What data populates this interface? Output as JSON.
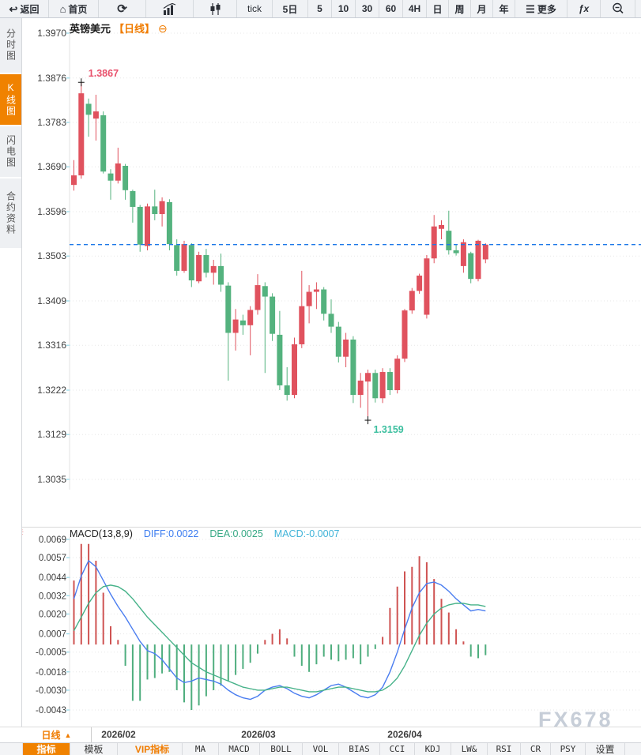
{
  "toolbar": {
    "items": [
      {
        "name": "back",
        "glyph": "↩",
        "label": "返回"
      },
      {
        "name": "home",
        "glyph": "⌂",
        "label": "首页"
      },
      {
        "name": "refresh",
        "glyph": "⟳",
        "label": ""
      },
      {
        "name": "bar-chart",
        "glyph": "",
        "label": ""
      },
      {
        "name": "candlestick",
        "glyph": "",
        "label": ""
      },
      {
        "name": "tick",
        "glyph": "",
        "label": "tick"
      },
      {
        "name": "5-day",
        "glyph": "",
        "label": "5日"
      },
      {
        "name": "5-min",
        "glyph": "",
        "label": "5"
      },
      {
        "name": "10-min",
        "glyph": "",
        "label": "10"
      },
      {
        "name": "30-min",
        "glyph": "",
        "label": "30"
      },
      {
        "name": "60-min",
        "glyph": "",
        "label": "60"
      },
      {
        "name": "4-hour",
        "glyph": "",
        "label": "4H"
      },
      {
        "name": "daily",
        "glyph": "",
        "label": "日"
      },
      {
        "name": "weekly",
        "glyph": "",
        "label": "周"
      },
      {
        "name": "monthly",
        "glyph": "",
        "label": "月"
      },
      {
        "name": "yearly",
        "glyph": "",
        "label": "年"
      },
      {
        "name": "more",
        "glyph": "☰",
        "label": "更多"
      },
      {
        "name": "fx",
        "glyph": "",
        "label": "ƒx"
      },
      {
        "name": "zoom-out",
        "glyph": "",
        "label": ""
      },
      {
        "name": "zoom-in-partial",
        "glyph": "",
        "label": ""
      }
    ]
  },
  "sidebar": {
    "tabs": [
      {
        "label": "分时图",
        "active": false
      },
      {
        "label": "K线图",
        "active": true
      },
      {
        "label": "闪电图",
        "active": false
      },
      {
        "label": "合约资料",
        "active": false
      }
    ]
  },
  "chart_header": {
    "symbol": "英镑美元",
    "period_tag": "【日线】",
    "collapse_glyph": "⊖"
  },
  "price_axis": {
    "ticks": [
      1.397,
      1.3876,
      1.3783,
      1.369,
      1.3596,
      1.3503,
      1.3409,
      1.3316,
      1.3222,
      1.3129,
      1.3035
    ]
  },
  "macd_header": {
    "name": "MACD(13,8,9)",
    "diff": "DIFF:0.0022",
    "dea": "DEA:0.0025",
    "macd": "MACD:-0.0007"
  },
  "macd_axis": {
    "ticks": [
      0.0069,
      0.0057,
      0.0044,
      0.0032,
      0.002,
      0.0007,
      -0.0005,
      -0.0018,
      -0.003,
      -0.0043
    ]
  },
  "xaxis": {
    "period_selector": "日线",
    "arrow": "▲",
    "dates": [
      "2026/02",
      "2026/03",
      "2026/04"
    ]
  },
  "bottom_toolbar": {
    "items": [
      "指标",
      "模板",
      "VIP指标",
      "MA",
      "MACD",
      "BOLL",
      "VOL",
      "BIAS",
      "CCI",
      "KDJ",
      "LW&",
      "RSI",
      "CR",
      "PSY",
      "设置"
    ]
  },
  "watermark": "FX678",
  "macd_gear_glyph": "☼",
  "colors": {
    "up": "#e0525e",
    "down": "#54b27e",
    "hist_up": "#cf5352",
    "hist_down": "#4fae7e",
    "diff_line": "#4a7df0",
    "dea_line": "#46b289",
    "dashed": "#1d78e8",
    "high_label": "#e8506b",
    "low_label": "#3cbf9f",
    "grid": "#e7e7e7",
    "axis_text": "#3c3c3c",
    "tick_mark": "#8fd8ea",
    "edge": "#e3e3e3",
    "marker": "#111111",
    "accent_orange": "#f08200"
  },
  "chart_data": {
    "type": "candlestick",
    "symbol": "英镑美元",
    "period": "日线",
    "high_label": "1.3867",
    "low_label": "1.3159",
    "last_price": 1.3527,
    "price_range": [
      1.3035,
      1.397
    ],
    "x_dates": [
      "2026/02",
      "2026/03",
      "2026/04"
    ],
    "candles": [
      [
        1.3652,
        1.3704,
        1.364,
        1.3672
      ],
      [
        1.3672,
        1.3867,
        1.3665,
        1.3844
      ],
      [
        1.3822,
        1.3833,
        1.3753,
        1.3799
      ],
      [
        1.3791,
        1.3841,
        1.3745,
        1.3806
      ],
      [
        1.3798,
        1.3806,
        1.3676,
        1.368
      ],
      [
        1.3676,
        1.3685,
        1.3621,
        1.3661
      ],
      [
        1.3661,
        1.373,
        1.3655,
        1.3697
      ],
      [
        1.3692,
        1.3696,
        1.3621,
        1.3641
      ],
      [
        1.3639,
        1.3642,
        1.3573,
        1.3606
      ],
      [
        1.3606,
        1.361,
        1.3512,
        1.3527
      ],
      [
        1.3524,
        1.3613,
        1.3515,
        1.3607
      ],
      [
        1.3607,
        1.3642,
        1.3578,
        1.3591
      ],
      [
        1.3591,
        1.3626,
        1.3565,
        1.3618
      ],
      [
        1.3616,
        1.3622,
        1.3515,
        1.3528
      ],
      [
        1.3526,
        1.3538,
        1.3462,
        1.3472
      ],
      [
        1.3472,
        1.3535,
        1.3468,
        1.3528
      ],
      [
        1.3526,
        1.353,
        1.3438,
        1.3452
      ],
      [
        1.345,
        1.3512,
        1.3446,
        1.3505
      ],
      [
        1.3505,
        1.3518,
        1.3458,
        1.3468
      ],
      [
        1.3468,
        1.3495,
        1.3443,
        1.3482
      ],
      [
        1.3482,
        1.3508,
        1.3428,
        1.3443
      ],
      [
        1.3441,
        1.3448,
        1.3242,
        1.3342
      ],
      [
        1.3342,
        1.3392,
        1.3305,
        1.337
      ],
      [
        1.3368,
        1.338,
        1.3338,
        1.3358
      ],
      [
        1.3358,
        1.3398,
        1.3295,
        1.339
      ],
      [
        1.339,
        1.3465,
        1.338,
        1.3442
      ],
      [
        1.344,
        1.3448,
        1.3258,
        1.3418
      ],
      [
        1.3418,
        1.3425,
        1.3325,
        1.334
      ],
      [
        1.3338,
        1.3388,
        1.3222,
        1.3232
      ],
      [
        1.3232,
        1.327,
        1.32,
        1.3212
      ],
      [
        1.3212,
        1.3332,
        1.3205,
        1.3318
      ],
      [
        1.3318,
        1.3472,
        1.331,
        1.3398
      ],
      [
        1.3398,
        1.3442,
        1.3362,
        1.3428
      ],
      [
        1.3428,
        1.3448,
        1.3392,
        1.3433
      ],
      [
        1.3433,
        1.3438,
        1.3368,
        1.3382
      ],
      [
        1.3382,
        1.3412,
        1.3342,
        1.3355
      ],
      [
        1.3355,
        1.3365,
        1.328,
        1.3292
      ],
      [
        1.3292,
        1.3342,
        1.327,
        1.3328
      ],
      [
        1.3328,
        1.3335,
        1.3195,
        1.3212
      ],
      [
        1.3212,
        1.3258,
        1.3185,
        1.3242
      ],
      [
        1.324,
        1.3265,
        1.3159,
        1.3258
      ],
      [
        1.3258,
        1.3265,
        1.3196,
        1.3205
      ],
      [
        1.3205,
        1.3268,
        1.3195,
        1.326
      ],
      [
        1.326,
        1.3268,
        1.3212,
        1.3222
      ],
      [
        1.3222,
        1.3295,
        1.3215,
        1.3288
      ],
      [
        1.3288,
        1.3392,
        1.3281,
        1.3389
      ],
      [
        1.3389,
        1.3436,
        1.3382,
        1.343
      ],
      [
        1.343,
        1.3466,
        1.3424,
        1.3462
      ],
      [
        1.338,
        1.3505,
        1.3372,
        1.3498
      ],
      [
        1.3498,
        1.3589,
        1.3488,
        1.3565
      ],
      [
        1.356,
        1.3578,
        1.3538,
        1.3568
      ],
      [
        1.3556,
        1.3598,
        1.3506,
        1.3515
      ],
      [
        1.3515,
        1.3528,
        1.3504,
        1.3509
      ],
      [
        1.3482,
        1.3538,
        1.3468,
        1.3532
      ],
      [
        1.3509,
        1.3512,
        1.3446,
        1.3455
      ],
      [
        1.3455,
        1.3537,
        1.345,
        1.3535
      ],
      [
        1.3496,
        1.353,
        1.3488,
        1.3527
      ]
    ],
    "macd": {
      "params": [
        13,
        8,
        9
      ],
      "diff_last": 0.0022,
      "dea_last": 0.0025,
      "macd_last": -0.0007,
      "hist": [
        0.0042,
        0.0066,
        0.0066,
        0.0055,
        0.0034,
        0.0012,
        0.0003,
        -0.0014,
        -0.0037,
        -0.0037,
        -0.0023,
        -0.0022,
        -0.0019,
        -0.0018,
        -0.003,
        -0.0038,
        -0.0043,
        -0.004,
        -0.0034,
        -0.003,
        -0.0027,
        -0.0024,
        -0.002,
        -0.0016,
        -0.0012,
        -0.0006,
        0.0003,
        0.0007,
        0.001,
        0.0004,
        -0.0008,
        -0.0014,
        -0.0018,
        -0.0013,
        -0.0008,
        -0.001,
        -0.0011,
        -0.001,
        -0.0009,
        -0.0013,
        -0.0008,
        -0.0003,
        0.0005,
        0.0024,
        0.0038,
        0.0048,
        0.0051,
        0.0058,
        0.0054,
        0.0043,
        0.003,
        0.0021,
        0.001,
        0.0002,
        -0.0008,
        -0.0009,
        -0.0007
      ],
      "diff": [
        0.003,
        0.0045,
        0.0055,
        0.0051,
        0.0042,
        0.0033,
        0.0025,
        0.0018,
        0.001,
        0.0002,
        -0.0004,
        -0.0006,
        -0.001,
        -0.0016,
        -0.0022,
        -0.0025,
        -0.0024,
        -0.0022,
        -0.0023,
        -0.0024,
        -0.0026,
        -0.003,
        -0.0033,
        -0.0035,
        -0.0036,
        -0.0034,
        -0.003,
        -0.0028,
        -0.0027,
        -0.0029,
        -0.0032,
        -0.0034,
        -0.0035,
        -0.0033,
        -0.003,
        -0.0027,
        -0.0026,
        -0.0028,
        -0.0031,
        -0.0034,
        -0.0035,
        -0.0033,
        -0.0028,
        -0.0018,
        -0.0005,
        0.001,
        0.0024,
        0.0034,
        0.004,
        0.0041,
        0.0039,
        0.0035,
        0.003,
        0.0026,
        0.0022,
        0.0023,
        0.0022
      ],
      "dea": [
        0.0009,
        0.0018,
        0.0027,
        0.0034,
        0.0038,
        0.0039,
        0.0038,
        0.0035,
        0.003,
        0.0024,
        0.0018,
        0.0013,
        0.0008,
        0.0003,
        -0.0002,
        -0.0007,
        -0.0012,
        -0.0015,
        -0.0018,
        -0.002,
        -0.0022,
        -0.0024,
        -0.0026,
        -0.0028,
        -0.0029,
        -0.003,
        -0.003,
        -0.0029,
        -0.0028,
        -0.0028,
        -0.0029,
        -0.003,
        -0.0031,
        -0.0031,
        -0.003,
        -0.0029,
        -0.0028,
        -0.0028,
        -0.0029,
        -0.003,
        -0.0031,
        -0.0031,
        -0.003,
        -0.0027,
        -0.0022,
        -0.0014,
        -0.0004,
        0.0006,
        0.0014,
        0.002,
        0.0024,
        0.0026,
        0.0027,
        0.0027,
        0.0026,
        0.0026,
        0.0025
      ]
    }
  }
}
